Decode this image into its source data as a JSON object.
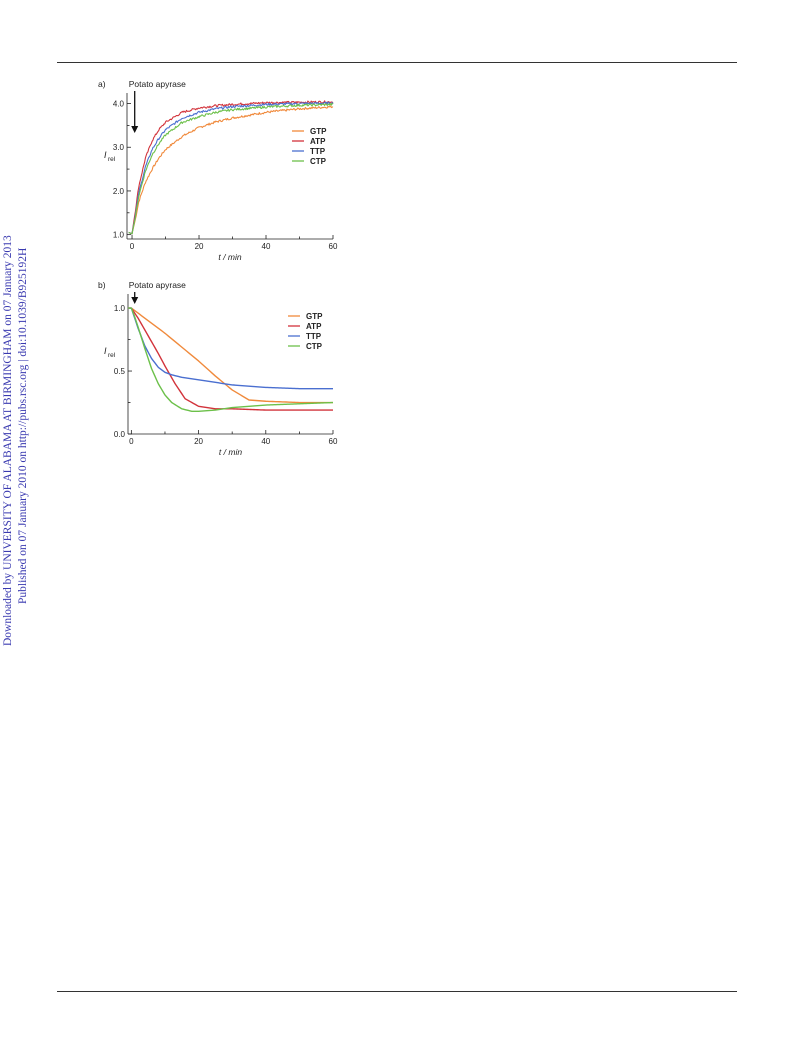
{
  "sidebar": {
    "line1": "Downloaded by UNIVERSITY OF ALABAMA AT BIRMINGHAM on 07 January 2013",
    "line2": "Published on 07 January 2010 on http://pubs.rsc.org | doi:10.1039/B925192H"
  },
  "colors": {
    "GTP": "#f08a3c",
    "ATP": "#d2333b",
    "TTP": "#4a6fd0",
    "CTP": "#6cc04a"
  },
  "chart_data": [
    {
      "panel": "a)",
      "type": "line",
      "annotation": "Potato apyrase",
      "annotation_x": 0.8,
      "xlabel": "t / min",
      "ylabel": "I",
      "ylabel_sub": "rel",
      "xlim": [
        -1.5,
        60
      ],
      "ylim": [
        0.9,
        4.15
      ],
      "xticks": [
        0,
        20,
        40,
        60
      ],
      "yticks": [
        1.0,
        2.0,
        3.0,
        4.0
      ],
      "ytick_labels": [
        "1.0",
        "2.0",
        "3.0",
        "4.0"
      ],
      "legend": "right",
      "noise": 0.025,
      "series": [
        {
          "name": "GTP",
          "x": [
            -1,
            0,
            1,
            2,
            4,
            6,
            8,
            10,
            15,
            20,
            25,
            30,
            40,
            50,
            60
          ],
          "y": [
            1.05,
            1.02,
            1.35,
            1.75,
            2.2,
            2.5,
            2.75,
            2.95,
            3.25,
            3.45,
            3.58,
            3.67,
            3.8,
            3.88,
            3.93
          ]
        },
        {
          "name": "ATP",
          "x": [
            -1,
            0,
            1,
            2,
            4,
            6,
            8,
            10,
            15,
            20,
            25,
            30,
            40,
            50,
            60
          ],
          "y": [
            1.05,
            1.02,
            1.55,
            2.1,
            2.75,
            3.15,
            3.4,
            3.57,
            3.8,
            3.9,
            3.95,
            3.98,
            4.02,
            4.03,
            4.04
          ]
        },
        {
          "name": "TTP",
          "x": [
            -1,
            0,
            1,
            2,
            4,
            6,
            8,
            10,
            15,
            20,
            25,
            30,
            40,
            50,
            60
          ],
          "y": [
            1.05,
            1.02,
            1.45,
            1.95,
            2.55,
            2.95,
            3.2,
            3.4,
            3.67,
            3.8,
            3.88,
            3.93,
            3.98,
            4.0,
            4.01
          ]
        },
        {
          "name": "CTP",
          "x": [
            -1,
            0,
            1,
            2,
            4,
            6,
            8,
            10,
            15,
            20,
            25,
            30,
            40,
            50,
            60
          ],
          "y": [
            1.05,
            1.02,
            1.4,
            1.88,
            2.45,
            2.83,
            3.08,
            3.28,
            3.57,
            3.7,
            3.8,
            3.86,
            3.92,
            3.96,
            3.98
          ]
        }
      ]
    },
    {
      "panel": "b)",
      "type": "line",
      "annotation": "Potato apyrase",
      "annotation_x": 1,
      "xlabel": "t / min",
      "ylabel": "I",
      "ylabel_sub": "rel",
      "xlim": [
        -1,
        60
      ],
      "ylim": [
        0,
        1.08
      ],
      "xticks": [
        0,
        20,
        40,
        60
      ],
      "yticks": [
        0.0,
        0.5,
        1.0
      ],
      "ytick_labels": [
        "0.0",
        "0.5",
        "1.0"
      ],
      "legend": "right",
      "noise": 0,
      "series": [
        {
          "name": "GTP",
          "x": [
            -1,
            0,
            2,
            5,
            10,
            15,
            20,
            25,
            30,
            35,
            40,
            50,
            60
          ],
          "y": [
            1.0,
            1.0,
            0.96,
            0.9,
            0.8,
            0.69,
            0.58,
            0.46,
            0.35,
            0.27,
            0.26,
            0.25,
            0.25
          ]
        },
        {
          "name": "ATP",
          "x": [
            -1,
            0,
            2,
            5,
            8,
            10,
            13,
            16,
            20,
            25,
            30,
            40,
            50,
            60
          ],
          "y": [
            1.0,
            1.0,
            0.92,
            0.78,
            0.64,
            0.54,
            0.4,
            0.28,
            0.22,
            0.2,
            0.2,
            0.19,
            0.19,
            0.19
          ]
        },
        {
          "name": "TTP",
          "x": [
            -1,
            0,
            2,
            4,
            6,
            8,
            10,
            12,
            15,
            20,
            25,
            30,
            40,
            50,
            60
          ],
          "y": [
            1.0,
            1.0,
            0.84,
            0.7,
            0.6,
            0.53,
            0.49,
            0.47,
            0.45,
            0.43,
            0.41,
            0.39,
            0.37,
            0.36,
            0.36
          ]
        },
        {
          "name": "CTP",
          "x": [
            -1,
            0,
            1,
            2,
            4,
            6,
            8,
            10,
            12,
            15,
            18,
            20,
            25,
            30,
            40,
            50,
            60
          ],
          "y": [
            1.0,
            1.0,
            0.93,
            0.85,
            0.68,
            0.52,
            0.4,
            0.31,
            0.25,
            0.2,
            0.18,
            0.18,
            0.19,
            0.21,
            0.23,
            0.24,
            0.25
          ]
        }
      ]
    }
  ]
}
